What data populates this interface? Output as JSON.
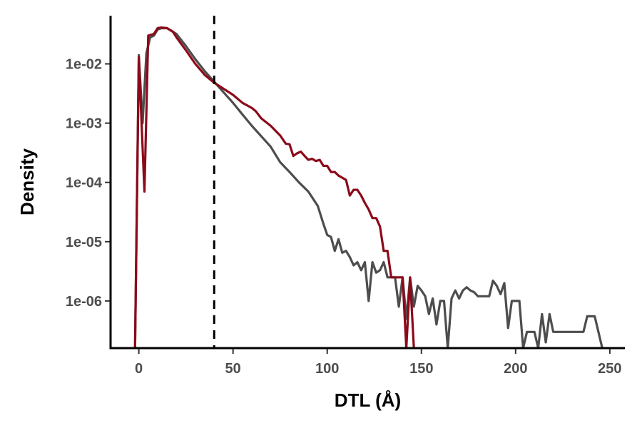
{
  "chart_data": {
    "type": "line",
    "xlabel": "DTL (Å)",
    "ylabel": "Density",
    "x_scale": "linear",
    "y_scale": "log",
    "xlim": [
      -15,
      258
    ],
    "ylim": [
      1.6e-07,
      0.065
    ],
    "x_ticks": [
      0,
      50,
      100,
      150,
      200,
      250
    ],
    "x_tick_labels": [
      "0",
      "50",
      "100",
      "150",
      "200",
      "250"
    ],
    "y_ticks": [
      1e-06,
      1e-05,
      0.0001,
      0.001,
      0.01
    ],
    "y_tick_labels": [
      "1e-06",
      "1e-05",
      "1e-04",
      "1e-03",
      "1e-02"
    ],
    "grid": false,
    "legend": "none",
    "annotations": [
      {
        "type": "vline",
        "x": 40,
        "style": "dashed",
        "color": "#000000"
      }
    ],
    "series": [
      {
        "color": "#4d4d4d",
        "points": [
          [
            -2,
            1.6e-07
          ],
          [
            0,
            0.014
          ],
          [
            2,
            0.001
          ],
          [
            4,
            0.015
          ],
          [
            6,
            0.028
          ],
          [
            8,
            0.03
          ],
          [
            10,
            0.038
          ],
          [
            12,
            0.04
          ],
          [
            15,
            0.04
          ],
          [
            20,
            0.032
          ],
          [
            25,
            0.02
          ],
          [
            30,
            0.012
          ],
          [
            35,
            0.0075
          ],
          [
            40,
            0.005
          ],
          [
            45,
            0.0033
          ],
          [
            50,
            0.0022
          ],
          [
            55,
            0.0014
          ],
          [
            60,
            0.0009
          ],
          [
            65,
            0.0006
          ],
          [
            70,
            0.0004
          ],
          [
            75,
            0.00022
          ],
          [
            80,
            0.00015
          ],
          [
            85,
            0.0001
          ],
          [
            90,
            7e-05
          ],
          [
            95,
            4e-05
          ],
          [
            98,
            2e-05
          ],
          [
            100,
            1.3e-05
          ],
          [
            102,
            1.2e-05
          ],
          [
            104,
            7e-06
          ],
          [
            106,
            1.1e-05
          ],
          [
            108,
            6.5e-06
          ],
          [
            110,
            7e-06
          ],
          [
            112,
            5.5e-06
          ],
          [
            114,
            4e-06
          ],
          [
            116,
            4.5e-06
          ],
          [
            118,
            3.3e-06
          ],
          [
            120,
            4.5e-06
          ],
          [
            122,
            1e-06
          ],
          [
            124,
            4.5e-06
          ],
          [
            126,
            3e-06
          ],
          [
            128,
            3.3e-06
          ],
          [
            130,
            4.5e-06
          ],
          [
            132,
            2.5e-06
          ],
          [
            134,
            2.5e-06
          ],
          [
            136,
            2.5e-06
          ],
          [
            138,
            8e-07
          ],
          [
            140,
            2.5e-06
          ],
          [
            142,
            5e-07
          ],
          [
            144,
            2.5e-06
          ],
          [
            146,
            8e-07
          ],
          [
            148,
            1.8e-06
          ],
          [
            150,
            1.5e-06
          ],
          [
            152,
            1.2e-06
          ],
          [
            154,
            6e-07
          ],
          [
            156,
            1.1e-06
          ],
          [
            158,
            4e-07
          ],
          [
            160,
            1e-06
          ],
          [
            162,
            1e-06
          ],
          [
            164,
            1.6e-07
          ],
          [
            166,
            1.1e-06
          ],
          [
            168,
            1.5e-06
          ],
          [
            170,
            1.1e-06
          ],
          [
            172,
            1.5e-06
          ],
          [
            174,
            1.7e-06
          ],
          [
            176,
            1.5e-06
          ],
          [
            178,
            1.4e-06
          ],
          [
            180,
            1.2e-06
          ],
          [
            184,
            1.2e-06
          ],
          [
            186,
            1.2e-06
          ],
          [
            188,
            2.2e-06
          ],
          [
            190,
            1.8e-06
          ],
          [
            192,
            1.3e-06
          ],
          [
            194,
            2e-06
          ],
          [
            196,
            3.5e-07
          ],
          [
            198,
            1e-06
          ],
          [
            200,
            1e-06
          ],
          [
            202,
            1e-06
          ],
          [
            204,
            1.6e-07
          ],
          [
            206,
            3e-07
          ],
          [
            208,
            3e-07
          ],
          [
            210,
            3e-07
          ],
          [
            212,
            1.6e-07
          ],
          [
            214,
            6e-07
          ],
          [
            216,
            2e-07
          ],
          [
            218,
            6e-07
          ],
          [
            220,
            3e-07
          ],
          [
            222,
            3e-07
          ],
          [
            226,
            3e-07
          ],
          [
            228,
            3e-07
          ],
          [
            232,
            3e-07
          ],
          [
            236,
            3e-07
          ],
          [
            238,
            5.5e-07
          ],
          [
            242,
            5.5e-07
          ],
          [
            246,
            1.6e-07
          ]
        ]
      },
      {
        "color": "#8b0a1a",
        "points": [
          [
            -2,
            1.6e-07
          ],
          [
            0,
            0.013
          ],
          [
            3,
            7e-05
          ],
          [
            5,
            0.03
          ],
          [
            8,
            0.032
          ],
          [
            10,
            0.04
          ],
          [
            12,
            0.041
          ],
          [
            15,
            0.04
          ],
          [
            18,
            0.035
          ],
          [
            20,
            0.028
          ],
          [
            25,
            0.017
          ],
          [
            30,
            0.01
          ],
          [
            35,
            0.0065
          ],
          [
            40,
            0.0048
          ],
          [
            45,
            0.0038
          ],
          [
            50,
            0.003
          ],
          [
            55,
            0.0022
          ],
          [
            60,
            0.0018
          ],
          [
            62,
            0.0016
          ],
          [
            65,
            0.0012
          ],
          [
            70,
            0.0009
          ],
          [
            75,
            0.00062
          ],
          [
            78,
            0.00045
          ],
          [
            80,
            0.00044
          ],
          [
            82,
            0.00028
          ],
          [
            84,
            0.00031
          ],
          [
            86,
            0.00033
          ],
          [
            88,
            0.00028
          ],
          [
            90,
            0.00024
          ],
          [
            92,
            0.00025
          ],
          [
            94,
            0.00023
          ],
          [
            96,
            0.00024
          ],
          [
            98,
            0.00019
          ],
          [
            100,
            0.00019
          ],
          [
            102,
            0.00015
          ],
          [
            104,
            0.00015
          ],
          [
            106,
            0.00013
          ],
          [
            108,
            0.00012
          ],
          [
            110,
            0.00011
          ],
          [
            112,
            6e-05
          ],
          [
            114,
            7.5e-05
          ],
          [
            116,
            7.5e-05
          ],
          [
            118,
            6e-05
          ],
          [
            120,
            4.5e-05
          ],
          [
            122,
            3.5e-05
          ],
          [
            124,
            2.5e-05
          ],
          [
            126,
            2.5e-05
          ],
          [
            128,
            1.8e-05
          ],
          [
            130,
            7e-06
          ],
          [
            132,
            7e-06
          ],
          [
            134,
            2.5e-06
          ],
          [
            136,
            2.5e-06
          ],
          [
            138,
            2.5e-06
          ],
          [
            140,
            2.5e-06
          ],
          [
            142,
            1.6e-07
          ],
          [
            144,
            2.5e-06
          ],
          [
            146,
            1.6e-07
          ]
        ]
      }
    ]
  }
}
